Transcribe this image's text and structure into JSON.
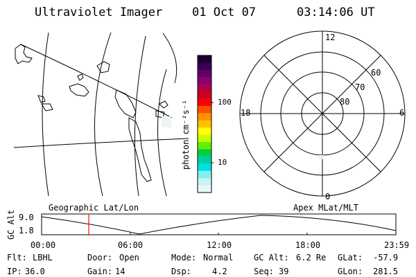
{
  "header": {
    "instrument": "Ultraviolet Imager",
    "date": "01 Oct 07",
    "time": "03:14:06 UT"
  },
  "geo_panel": {
    "label": "Geographic Lat/Lon"
  },
  "colorbar": {
    "unit_label": "photon cm⁻²s⁻¹",
    "ticks": [
      "100",
      "10"
    ],
    "colors": [
      "#1a0030",
      "#3a0050",
      "#60006a",
      "#8a006e",
      "#b00048",
      "#d00020",
      "#ff0000",
      "#ff5000",
      "#ff9000",
      "#ffc000",
      "#ffff00",
      "#c8ff00",
      "#60f000",
      "#00d040",
      "#00d0a0",
      "#00e0e0",
      "#80f0f0",
      "#c8f4f4",
      "#e8f8f8"
    ]
  },
  "polar_panel": {
    "label": "Apex MLat/MLT",
    "mlt_labels": {
      "top": "12",
      "bottom": "0",
      "left": "18",
      "right": "6"
    },
    "lat_labels": [
      "60",
      "70",
      "80"
    ]
  },
  "orbit": {
    "axis_label": "GC Alt",
    "y_ticks": [
      "9.0",
      "1.8"
    ],
    "x_ticks": [
      "00:00",
      "06:00",
      "12:00",
      "18:00",
      "23:59"
    ],
    "current_marker_hour": 3.2
  },
  "status": {
    "row1": [
      {
        "key": "Flt:",
        "value": "LBHL"
      },
      {
        "key": "Door:",
        "value": "Open"
      },
      {
        "key": "Mode:",
        "value": "Normal"
      },
      {
        "key": "GC Alt:",
        "value": "6.2 Re"
      },
      {
        "key": "GLat:",
        "value": "-57.9"
      }
    ],
    "row2": [
      {
        "key": "IP:",
        "value": "36.0"
      },
      {
        "key": "Gain:",
        "value": "14"
      },
      {
        "key": "Dsp:",
        "value": "4.2"
      },
      {
        "key": "Seq:",
        "value": "39"
      },
      {
        "key": "GLon:",
        "value": "281.5"
      }
    ]
  }
}
